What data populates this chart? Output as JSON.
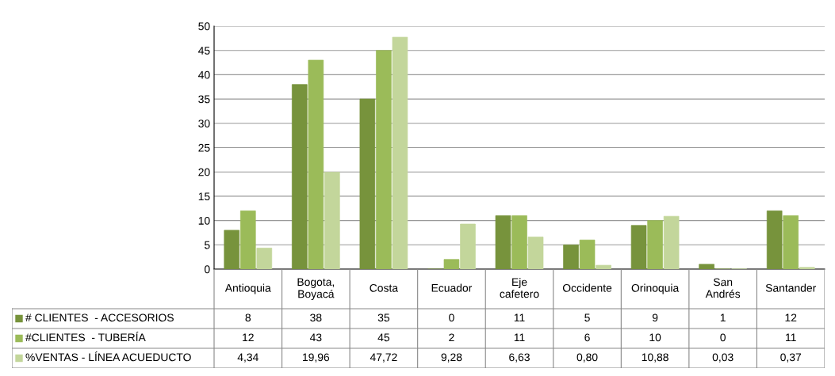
{
  "chart_data": {
    "type": "bar",
    "categories": [
      "Antioquia",
      "Bogota,\nBoyacá",
      "Costa",
      "Ecuador",
      "Eje\ncafetero",
      "Occidente",
      "Orinoquia",
      "San\nAndrés",
      "Santander"
    ],
    "series": [
      {
        "name": "# CLIENTES  - ACCESORIOS",
        "color": "#77933c",
        "values": [
          8,
          38,
          35,
          0,
          11,
          5,
          9,
          1,
          12
        ],
        "value_labels": [
          "8",
          "38",
          "35",
          "0",
          "11",
          "5",
          "9",
          "1",
          "12"
        ]
      },
      {
        "name": "#CLIENTES  - TUBERÍA",
        "color": "#9bbb59",
        "values": [
          12,
          43,
          45,
          2,
          11,
          6,
          10,
          0,
          11
        ],
        "value_labels": [
          "12",
          "43",
          "45",
          "2",
          "11",
          "6",
          "10",
          "0",
          "11"
        ]
      },
      {
        "name": "%VENTAS - LÍNEA ACUEDUCTO",
        "color": "#c3d69b",
        "values": [
          4.34,
          19.96,
          47.72,
          9.28,
          6.63,
          0.8,
          10.88,
          0.03,
          0.37
        ],
        "value_labels": [
          "4,34",
          "19,96",
          "47,72",
          "9,28",
          "6,63",
          "0,80",
          "10,88",
          "0,03",
          "0,37"
        ]
      }
    ],
    "ylim": [
      0,
      50
    ],
    "yticks": [
      0,
      5,
      10,
      15,
      20,
      25,
      30,
      35,
      40,
      45,
      50
    ],
    "grid": "y",
    "legend": "bottom left"
  }
}
